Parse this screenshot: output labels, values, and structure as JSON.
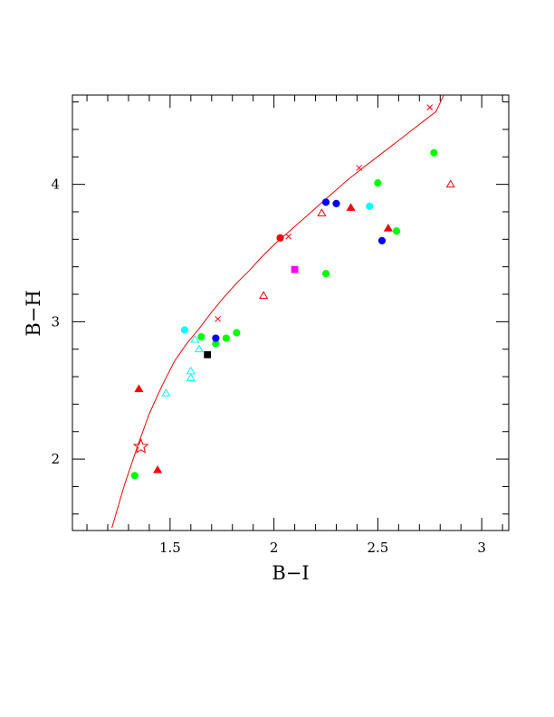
{
  "chart_data": {
    "type": "scatter",
    "xlabel": "B−I",
    "ylabel": "B−H",
    "xlim": [
      1.03,
      3.13
    ],
    "ylim": [
      1.48,
      4.65
    ],
    "x_ticks": [
      1.5,
      2,
      2.5,
      3
    ],
    "x_tick_labels": [
      "1.5",
      "2",
      "2.5",
      "3"
    ],
    "y_ticks": [
      2,
      3,
      4
    ],
    "y_tick_labels": [
      "2",
      "3",
      "4"
    ],
    "grid": false,
    "curve": {
      "color": "#ff0000",
      "x": [
        1.22,
        1.28,
        1.34,
        1.4,
        1.46,
        1.52,
        1.58,
        1.64,
        1.7,
        1.76,
        1.82,
        1.88,
        1.94,
        2.0,
        2.06,
        2.12,
        2.18,
        2.24,
        2.3,
        2.36,
        2.42,
        2.48,
        2.54,
        2.6,
        2.66,
        2.72,
        2.78,
        2.82
      ],
      "y": [
        1.5,
        1.81,
        2.08,
        2.33,
        2.53,
        2.71,
        2.84,
        2.95,
        3.07,
        3.18,
        3.28,
        3.37,
        3.47,
        3.56,
        3.64,
        3.72,
        3.8,
        3.88,
        3.96,
        4.04,
        4.11,
        4.18,
        4.25,
        4.32,
        4.39,
        4.46,
        4.53,
        4.66
      ],
      "markers_x": [
        1.73,
        2.07,
        2.41,
        2.75
      ],
      "markers_y": [
        3.02,
        3.62,
        4.12,
        4.56
      ]
    },
    "star": {
      "x": 1.36,
      "y": 2.09,
      "color": "#ff0000"
    },
    "points": [
      {
        "x": 1.35,
        "y": 2.51,
        "shape": "triangle",
        "color": "#ff0000",
        "filled": true
      },
      {
        "x": 1.44,
        "y": 1.92,
        "shape": "triangle",
        "color": "#ff0000",
        "filled": true
      },
      {
        "x": 2.37,
        "y": 3.83,
        "shape": "triangle",
        "color": "#ff0000",
        "filled": true
      },
      {
        "x": 2.55,
        "y": 3.68,
        "shape": "triangle",
        "color": "#ff0000",
        "filled": true
      },
      {
        "x": 1.95,
        "y": 3.19,
        "shape": "triangle",
        "color": "#ff0000",
        "filled": false
      },
      {
        "x": 2.23,
        "y": 3.79,
        "shape": "triangle",
        "color": "#ff0000",
        "filled": false
      },
      {
        "x": 2.85,
        "y": 4.0,
        "shape": "triangle",
        "color": "#ff0000",
        "filled": false
      },
      {
        "x": 1.48,
        "y": 2.48,
        "shape": "triangle",
        "color": "#00ffff",
        "filled": false
      },
      {
        "x": 1.6,
        "y": 2.64,
        "shape": "triangle",
        "color": "#00ffff",
        "filled": false
      },
      {
        "x": 1.6,
        "y": 2.59,
        "shape": "triangle",
        "color": "#00ffff",
        "filled": false
      },
      {
        "x": 1.62,
        "y": 2.87,
        "shape": "triangle",
        "color": "#00ffff",
        "filled": false
      },
      {
        "x": 1.64,
        "y": 2.8,
        "shape": "triangle",
        "color": "#00ffff",
        "filled": false
      },
      {
        "x": 2.03,
        "y": 3.61,
        "shape": "circle",
        "color": "#ff0000",
        "filled": true
      },
      {
        "x": 1.57,
        "y": 2.94,
        "shape": "circle",
        "color": "#00ffff",
        "filled": true
      },
      {
        "x": 2.46,
        "y": 3.84,
        "shape": "circle",
        "color": "#00ffff",
        "filled": true
      },
      {
        "x": 1.33,
        "y": 1.88,
        "shape": "circle",
        "color": "#00ff00",
        "filled": true
      },
      {
        "x": 1.65,
        "y": 2.89,
        "shape": "circle",
        "color": "#00ff00",
        "filled": true
      },
      {
        "x": 1.72,
        "y": 2.84,
        "shape": "circle",
        "color": "#00ff00",
        "filled": true
      },
      {
        "x": 1.77,
        "y": 2.88,
        "shape": "circle",
        "color": "#00ff00",
        "filled": true
      },
      {
        "x": 1.82,
        "y": 2.92,
        "shape": "circle",
        "color": "#00ff00",
        "filled": true
      },
      {
        "x": 2.25,
        "y": 3.35,
        "shape": "circle",
        "color": "#00ff00",
        "filled": true
      },
      {
        "x": 2.5,
        "y": 4.01,
        "shape": "circle",
        "color": "#00ff00",
        "filled": true
      },
      {
        "x": 2.59,
        "y": 3.66,
        "shape": "circle",
        "color": "#00ff00",
        "filled": true
      },
      {
        "x": 2.77,
        "y": 4.23,
        "shape": "circle",
        "color": "#00ff00",
        "filled": true
      },
      {
        "x": 1.72,
        "y": 2.88,
        "shape": "circle",
        "color": "#0000ff",
        "filled": true
      },
      {
        "x": 2.25,
        "y": 3.87,
        "shape": "circle",
        "color": "#0000ff",
        "filled": true
      },
      {
        "x": 2.3,
        "y": 3.86,
        "shape": "circle",
        "color": "#0000ff",
        "filled": true
      },
      {
        "x": 2.52,
        "y": 3.59,
        "shape": "circle",
        "color": "#0000ff",
        "filled": true
      },
      {
        "x": 1.68,
        "y": 2.76,
        "shape": "square",
        "color": "#000000",
        "filled": true
      },
      {
        "x": 2.1,
        "y": 3.38,
        "shape": "square",
        "color": "#ff00ff",
        "filled": true
      }
    ]
  }
}
